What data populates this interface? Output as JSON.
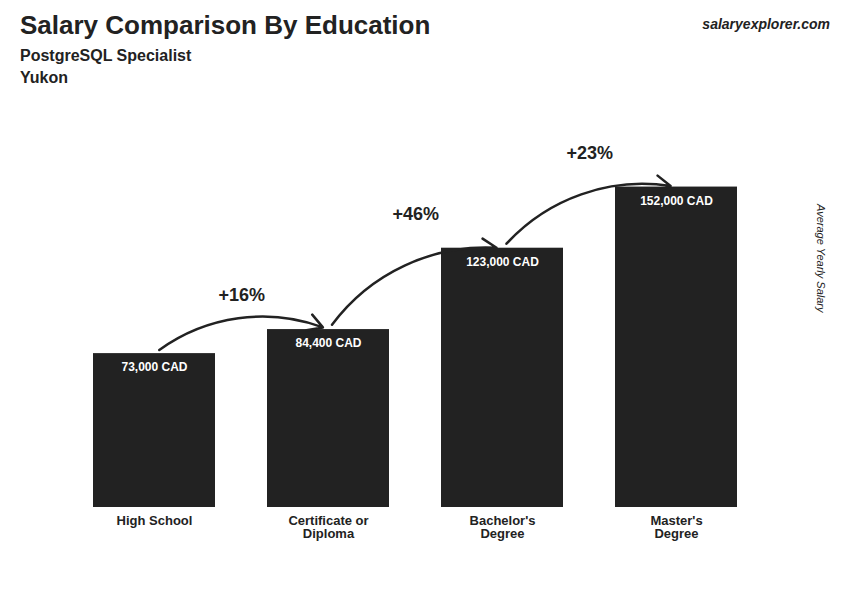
{
  "chart_data": {
    "type": "bar",
    "title": "Salary Comparison By Education",
    "subtitle": "PostgreSQL Specialist",
    "ylabel": "Average Yearly Salary",
    "categories": [
      "High School",
      "Certificate or\nDiploma",
      "Bachelor's\nDegree",
      "Master's\nDegree"
    ],
    "values": [
      73000,
      84400,
      123000,
      152000
    ],
    "value_labels": [
      "73,000 CAD",
      "84,400 CAD",
      "123,000 CAD",
      "152,000 CAD"
    ],
    "ylim": [
      0,
      185000
    ],
    "data_labels": true,
    "tick_labels": "x",
    "annotations": [
      {
        "text": "Yukon"
      },
      {
        "text": "salaryexplorer.com"
      },
      {
        "text": "+16%",
        "from": "High School",
        "to": "Certificate or\nDiploma"
      },
      {
        "text": "+46%",
        "from": "Certificate or\nDiploma",
        "to": "Bachelor's\nDegree"
      },
      {
        "text": "+23%",
        "from": "Bachelor's\nDegree",
        "to": "Master's\nDegree"
      }
    ]
  }
}
